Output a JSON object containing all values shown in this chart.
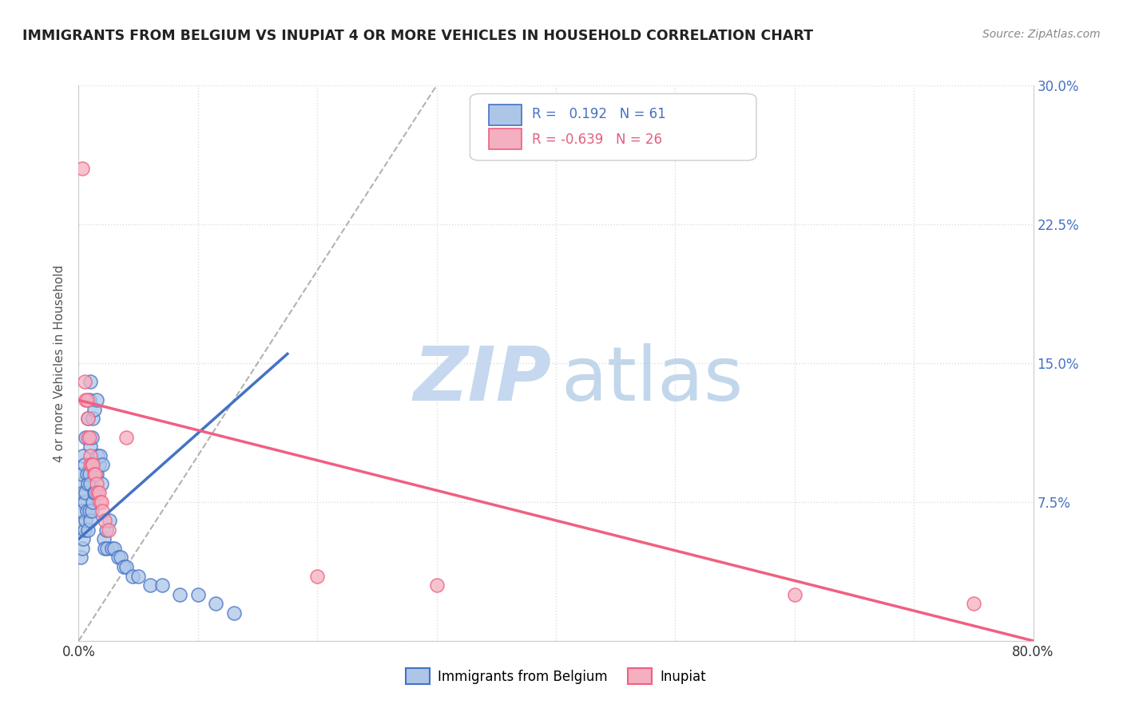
{
  "title": "IMMIGRANTS FROM BELGIUM VS INUPIAT 4 OR MORE VEHICLES IN HOUSEHOLD CORRELATION CHART",
  "source": "Source: ZipAtlas.com",
  "ylabel": "4 or more Vehicles in Household",
  "xlim": [
    0.0,
    0.8
  ],
  "ylim": [
    0.0,
    0.3
  ],
  "color_belgium": "#adc6e8",
  "color_inupiat": "#f4afc0",
  "color_belgium_line": "#3a6abf",
  "color_inupiat_line": "#e8607a",
  "color_belgium_dark": "#4472c4",
  "color_inupiat_dark": "#f06080",
  "watermark_zip_color": "#c5d8ef",
  "watermark_atlas_color": "#b8d0e8",
  "background_color": "#ffffff",
  "grid_color": "#dddddd",
  "belgium_x": [
    0.001,
    0.002,
    0.002,
    0.002,
    0.003,
    0.003,
    0.003,
    0.004,
    0.004,
    0.004,
    0.005,
    0.005,
    0.005,
    0.006,
    0.006,
    0.006,
    0.007,
    0.007,
    0.008,
    0.008,
    0.008,
    0.009,
    0.009,
    0.009,
    0.01,
    0.01,
    0.01,
    0.01,
    0.011,
    0.011,
    0.012,
    0.012,
    0.013,
    0.013,
    0.014,
    0.015,
    0.015,
    0.016,
    0.017,
    0.018,
    0.019,
    0.02,
    0.021,
    0.022,
    0.023,
    0.024,
    0.026,
    0.028,
    0.03,
    0.033,
    0.035,
    0.038,
    0.04,
    0.045,
    0.05,
    0.06,
    0.07,
    0.085,
    0.1,
    0.115,
    0.13
  ],
  "belgium_y": [
    0.063,
    0.045,
    0.075,
    0.085,
    0.05,
    0.07,
    0.09,
    0.055,
    0.08,
    0.1,
    0.06,
    0.075,
    0.095,
    0.065,
    0.08,
    0.11,
    0.07,
    0.09,
    0.06,
    0.085,
    0.12,
    0.07,
    0.09,
    0.13,
    0.065,
    0.085,
    0.105,
    0.14,
    0.07,
    0.11,
    0.075,
    0.12,
    0.08,
    0.125,
    0.08,
    0.09,
    0.13,
    0.1,
    0.095,
    0.1,
    0.085,
    0.095,
    0.055,
    0.05,
    0.06,
    0.05,
    0.065,
    0.05,
    0.05,
    0.045,
    0.045,
    0.04,
    0.04,
    0.035,
    0.035,
    0.03,
    0.03,
    0.025,
    0.025,
    0.02,
    0.015
  ],
  "inupiat_x": [
    0.003,
    0.005,
    0.006,
    0.007,
    0.008,
    0.008,
    0.009,
    0.01,
    0.01,
    0.011,
    0.012,
    0.013,
    0.014,
    0.015,
    0.016,
    0.017,
    0.018,
    0.019,
    0.02,
    0.022,
    0.025,
    0.04,
    0.2,
    0.3,
    0.6,
    0.75
  ],
  "inupiat_y": [
    0.255,
    0.14,
    0.13,
    0.13,
    0.12,
    0.11,
    0.11,
    0.1,
    0.095,
    0.095,
    0.095,
    0.09,
    0.09,
    0.085,
    0.08,
    0.08,
    0.075,
    0.075,
    0.07,
    0.065,
    0.06,
    0.11,
    0.035,
    0.03,
    0.025,
    0.02
  ],
  "belgium_line_x": [
    0.0,
    0.175
  ],
  "belgium_line_y": [
    0.055,
    0.155
  ],
  "inupiat_line_x": [
    0.0,
    0.8
  ],
  "inupiat_line_y": [
    0.13,
    0.0
  ],
  "diag_line_x": [
    0.0,
    0.3
  ],
  "diag_line_y": [
    0.0,
    0.3
  ]
}
